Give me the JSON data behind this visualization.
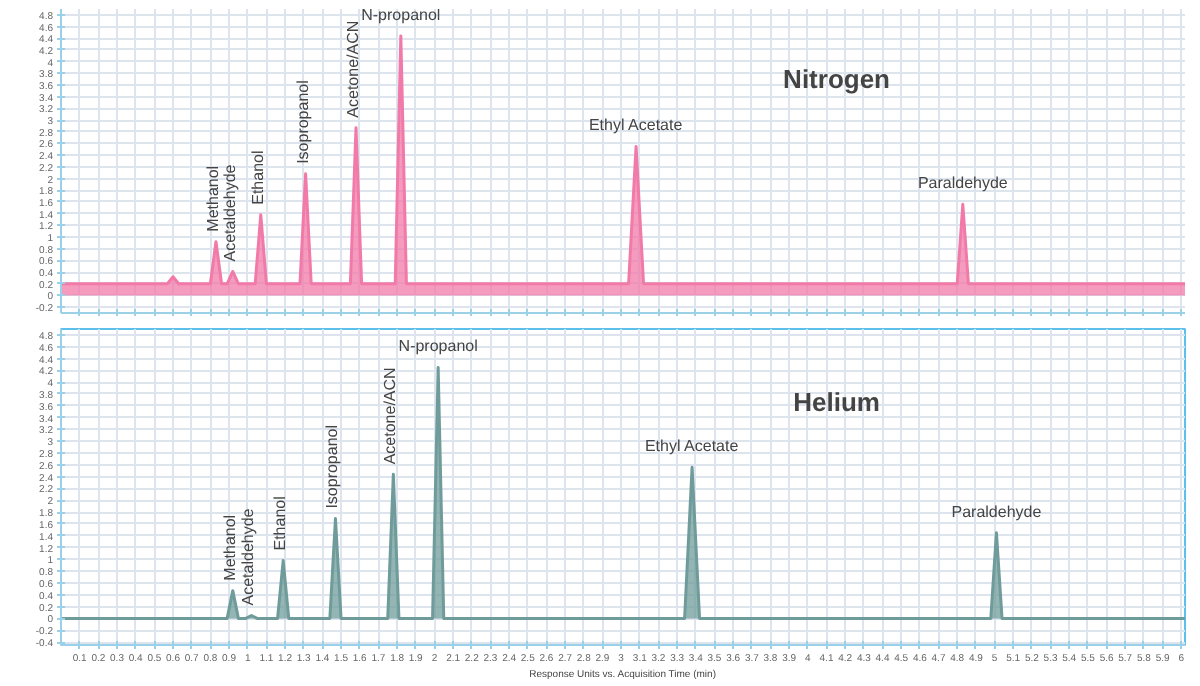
{
  "chart_data": [
    {
      "type": "area",
      "title": "Nitrogen",
      "tick_labels": "y",
      "grid": true,
      "xlim": [
        0,
        6.02
      ],
      "ylim": [
        -0.3,
        4.9
      ],
      "yticks": [
        -0.2,
        0,
        0.2,
        0.4,
        0.6,
        0.8,
        1,
        1.2,
        1.4,
        1.6,
        1.8,
        2,
        2.2,
        2.4,
        2.6,
        2.8,
        3,
        3.2,
        3.4,
        3.6,
        3.8,
        4,
        4.2,
        4.4,
        4.6,
        4.8
      ],
      "xticks": [
        0.1,
        0.2,
        0.3,
        0.4,
        0.5,
        0.6,
        0.7,
        0.8,
        0.9,
        1,
        1.1,
        1.2,
        1.3,
        1.4,
        1.5,
        1.6,
        1.7,
        1.8,
        1.9,
        2,
        2.1,
        2.2,
        2.3,
        2.4,
        2.5,
        2.6,
        2.7,
        2.8,
        2.9,
        3,
        3.1,
        3.2,
        3.3,
        3.4,
        3.5,
        3.6,
        3.7,
        3.8,
        3.9,
        4,
        4.1,
        4.2,
        4.3,
        4.4,
        4.5,
        4.6,
        4.7,
        4.8,
        4.9,
        5,
        5.1,
        5.2,
        5.3,
        5.4,
        5.5,
        5.6,
        5.7,
        5.8,
        5.9,
        6
      ],
      "series": [
        {
          "color": "#f27aa8",
          "x": [
            0,
            0.57,
            0.6,
            0.63,
            0.8,
            0.83,
            0.86,
            0.89,
            0.92,
            0.95,
            1.04,
            1.07,
            1.1,
            1.28,
            1.31,
            1.34,
            1.55,
            1.58,
            1.61,
            1.79,
            1.82,
            1.85,
            3.04,
            3.08,
            3.12,
            4.8,
            4.83,
            4.86,
            6.02
          ],
          "values": [
            0.2,
            0.2,
            0.32,
            0.2,
            0.2,
            0.92,
            0.2,
            0.2,
            0.41,
            0.2,
            0.2,
            1.38,
            0.2,
            0.2,
            2.08,
            0.2,
            0.2,
            2.87,
            0.2,
            0.2,
            4.44,
            0.2,
            0.2,
            2.55,
            0.2,
            0.2,
            1.56,
            0.2,
            0.2
          ]
        }
      ],
      "annotations": [
        {
          "text": "Methanol",
          "x": 0.83,
          "y": 0.92
        },
        {
          "text": "Acetaldehyde",
          "x": 0.92,
          "y": 0.41
        },
        {
          "text": "Ethanol",
          "x": 1.07,
          "y": 1.38
        },
        {
          "text": "Isopropanol",
          "x": 1.31,
          "y": 2.08
        },
        {
          "text": "Acetone/ACN",
          "x": 1.58,
          "y": 2.87
        },
        {
          "text": "N-propanol",
          "x": 1.82,
          "y": 4.44
        },
        {
          "text": "Ethyl Acetate",
          "x": 3.08,
          "y": 2.55
        },
        {
          "text": "Paraldehyde",
          "x": 4.83,
          "y": 1.56
        }
      ]
    },
    {
      "type": "area",
      "title": "Helium",
      "xlabel": "Response Units vs. Acquisition Time (min)",
      "grid": true,
      "xlim": [
        0,
        6.02
      ],
      "ylim": [
        -0.45,
        4.9
      ],
      "yticks": [
        -0.4,
        -0.2,
        0,
        0.2,
        0.4,
        0.6,
        0.8,
        1,
        1.2,
        1.4,
        1.6,
        1.8,
        2,
        2.2,
        2.4,
        2.6,
        2.8,
        3,
        3.2,
        3.4,
        3.6,
        3.8,
        4,
        4.2,
        4.4,
        4.6,
        4.8
      ],
      "xticks": [
        0.1,
        0.2,
        0.3,
        0.4,
        0.5,
        0.6,
        0.7,
        0.8,
        0.9,
        1,
        1.1,
        1.2,
        1.3,
        1.4,
        1.5,
        1.6,
        1.7,
        1.8,
        1.9,
        2,
        2.1,
        2.2,
        2.3,
        2.4,
        2.5,
        2.6,
        2.7,
        2.8,
        2.9,
        3,
        3.1,
        3.2,
        3.3,
        3.4,
        3.5,
        3.6,
        3.7,
        3.8,
        3.9,
        4,
        4.1,
        4.2,
        4.3,
        4.4,
        4.5,
        4.6,
        4.7,
        4.8,
        4.9,
        5,
        5.1,
        5.2,
        5.3,
        5.4,
        5.5,
        5.6,
        5.7,
        5.8,
        5.9,
        6
      ],
      "series": [
        {
          "color": "#6f9c9a",
          "x": [
            0,
            0.89,
            0.92,
            0.95,
            0.99,
            1.02,
            1.05,
            1.16,
            1.19,
            1.22,
            1.44,
            1.47,
            1.5,
            1.75,
            1.78,
            1.81,
            1.99,
            2.02,
            2.05,
            3.34,
            3.38,
            3.42,
            4.98,
            5.01,
            5.04,
            6.02
          ],
          "values": [
            0,
            0,
            0.47,
            0,
            0,
            0.05,
            0,
            0,
            0.98,
            0,
            0,
            1.69,
            0,
            0,
            2.44,
            0,
            0,
            4.25,
            0,
            0,
            2.56,
            0,
            0,
            1.45,
            0,
            0
          ]
        }
      ],
      "annotations": [
        {
          "text": "Methanol",
          "x": 0.92,
          "y": 0.47
        },
        {
          "text": "Acetaldehyde",
          "x": 1.02,
          "y": 0.05
        },
        {
          "text": "Ethanol",
          "x": 1.19,
          "y": 0.98
        },
        {
          "text": "Isopropanol",
          "x": 1.47,
          "y": 1.69
        },
        {
          "text": "Acetone/ACN",
          "x": 1.78,
          "y": 2.44
        },
        {
          "text": "N-propanol",
          "x": 2.02,
          "y": 4.25
        },
        {
          "text": "Ethyl Acetate",
          "x": 3.38,
          "y": 2.56
        },
        {
          "text": "Paraldehyde",
          "x": 5.01,
          "y": 1.45
        }
      ]
    }
  ]
}
